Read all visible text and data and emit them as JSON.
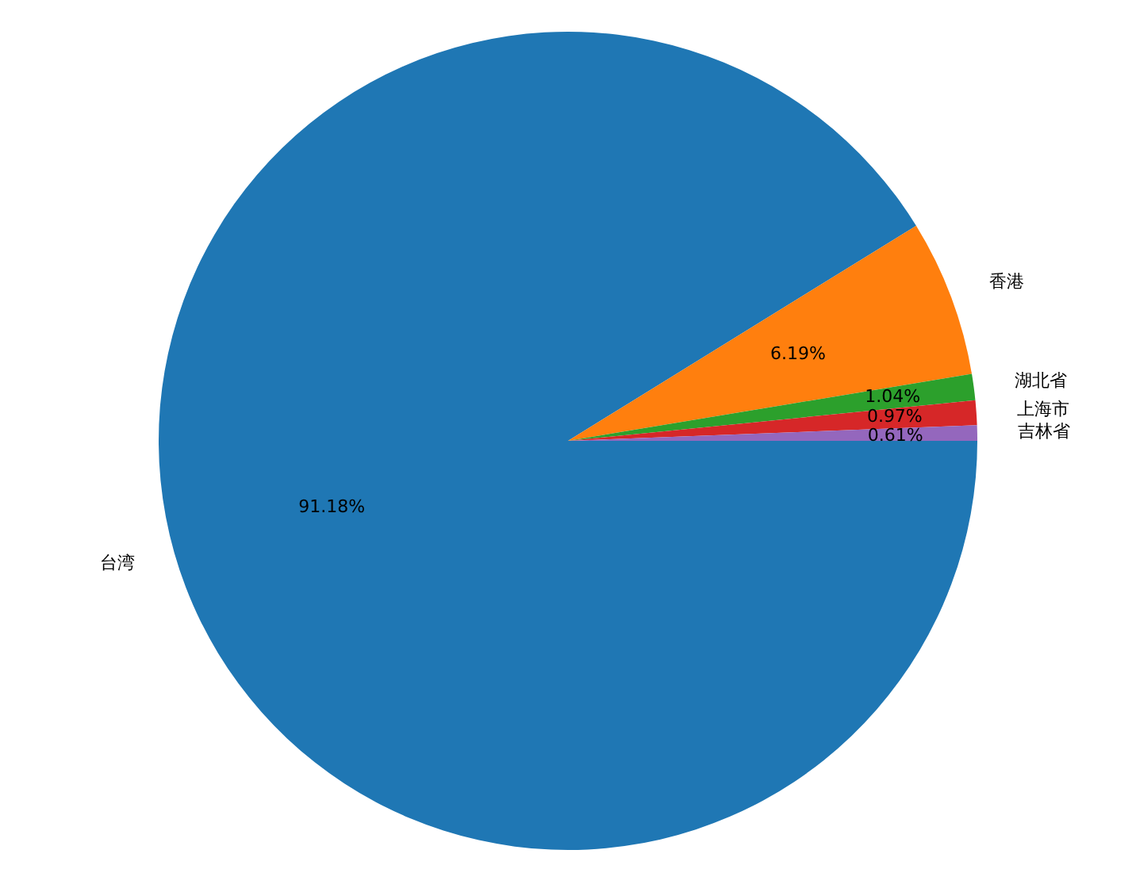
{
  "chart_data": {
    "type": "pie",
    "categories": [
      "台湾",
      "香港",
      "湖北省",
      "上海市",
      "吉林省"
    ],
    "values": [
      91.18,
      6.19,
      1.04,
      0.97,
      0.61
    ],
    "colors": [
      "#1f77b4",
      "#ff7f0e",
      "#2ca02c",
      "#d62728",
      "#9467bd"
    ],
    "value_labels": [
      "91.18%",
      "6.19%",
      "1.04%",
      "0.97%",
      "0.61%"
    ]
  }
}
